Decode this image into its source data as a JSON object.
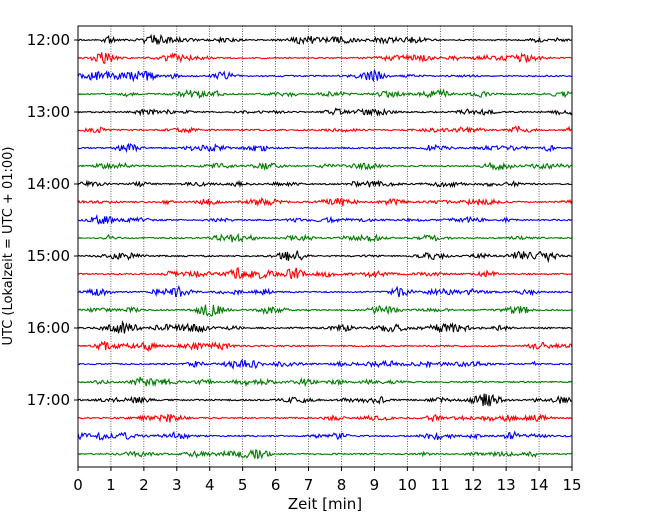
{
  "chart_data": {
    "type": "line",
    "title": "",
    "xlabel": "Zeit  [min]",
    "ylabel": "UTC (Lokalzeit = UTC + 01:00)",
    "xlim": [
      0,
      15
    ],
    "x_ticks": [
      "0",
      "1",
      "2",
      "3",
      "4",
      "5",
      "6",
      "7",
      "8",
      "9",
      "10",
      "11",
      "12",
      "13",
      "14",
      "15"
    ],
    "y_tick_labels": [
      "12:00",
      "13:00",
      "14:00",
      "15:00",
      "16:00",
      "17:00"
    ],
    "trace_start_times": [
      "12:00",
      "12:15",
      "12:30",
      "12:45",
      "13:00",
      "13:15",
      "13:30",
      "13:45",
      "14:00",
      "14:15",
      "14:30",
      "14:45",
      "15:00",
      "15:15",
      "15:30",
      "15:45",
      "16:00",
      "16:15",
      "16:30",
      "16:45",
      "17:00",
      "17:15",
      "17:30",
      "17:45"
    ],
    "trace_duration_min": 15,
    "color_cycle": [
      "#000000",
      "#ff0000",
      "#0000ff",
      "#007f00"
    ],
    "grid": "vertical dotted at each minute",
    "legend": "none"
  }
}
